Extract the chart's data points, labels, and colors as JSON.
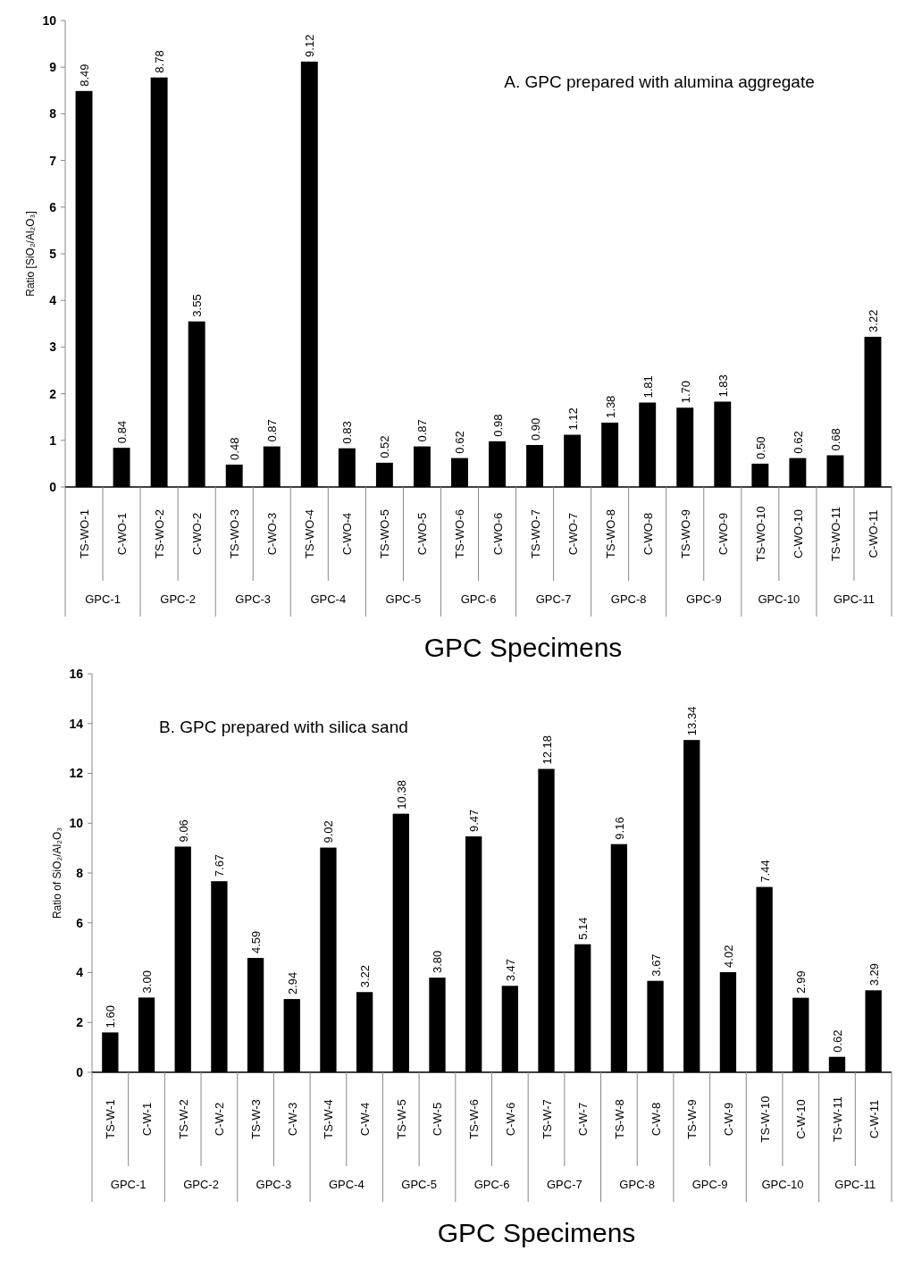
{
  "chart_data": [
    {
      "type": "bar",
      "title": "A. GPC prepared with alumina aggregate",
      "ylabel": "Ratio [SiO₂/Al₂O₃]",
      "xlabel": "GPC Specimens",
      "categories": [
        "TS-WO-1",
        "C-WO-1",
        "TS-WO-2",
        "C-WO-2",
        "TS-WO-3",
        "C-WO-3",
        "TS-WO-4",
        "C-WO-4",
        "TS-WO-5",
        "C-WO-5",
        "TS-WO-6",
        "C-WO-6",
        "TS-WO-7",
        "C-WO-7",
        "TS-WO-8",
        "C-WO-8",
        "TS-WO-9",
        "C-WO-9",
        "TS-WO-10",
        "C-WO-10",
        "TS-WO-11",
        "C-WO-11"
      ],
      "values": [
        8.49,
        0.84,
        8.78,
        3.55,
        0.48,
        0.87,
        9.12,
        0.83,
        0.52,
        0.87,
        0.62,
        0.98,
        0.9,
        1.12,
        1.38,
        1.81,
        1.7,
        1.83,
        0.5,
        0.62,
        0.68,
        3.22
      ],
      "value_labels": [
        "8.49",
        "0.84",
        "8.78",
        "3.55",
        "0.48",
        "0.87",
        "9.12",
        "0.83",
        "0.52",
        "0.87",
        "0.62",
        "0.98",
        "0.90",
        "1.12",
        "1.38",
        "1.81",
        "1.70",
        "1.83",
        "0.50",
        "0.62",
        "0.68",
        "3.22"
      ],
      "annotations": [
        "GPC-1",
        "GPC-2",
        "GPC-3",
        "GPC-4",
        "GPC-5",
        "GPC-6",
        "GPC-7",
        "GPC-8",
        "GPC-9",
        "GPC-10",
        "GPC-11"
      ],
      "color": "#000000",
      "ylim": [
        0,
        10
      ],
      "yticks": [
        0,
        1,
        2,
        3,
        4,
        5,
        6,
        7,
        8,
        9,
        10
      ]
    },
    {
      "type": "bar",
      "title": "B. GPC prepared with silica sand",
      "ylabel": "Ratio of SiO₂/Al₂O₃",
      "xlabel": "GPC Specimens",
      "categories": [
        "TS-W-1",
        "C-W-1",
        "TS-W-2",
        "C-W-2",
        "TS-W-3",
        "C-W-3",
        "TS-W-4",
        "C-W-4",
        "TS-W-5",
        "C-W-5",
        "TS-W-6",
        "C-W-6",
        "TS-W-7",
        "C-W-7",
        "TS-W-8",
        "C-W-8",
        "TS-W-9",
        "C-W-9",
        "TS-W-10",
        "C-W-10",
        "TS-W-11",
        "C-W-11"
      ],
      "values": [
        1.6,
        3.0,
        9.06,
        7.67,
        4.59,
        2.94,
        9.02,
        3.22,
        10.38,
        3.8,
        9.47,
        3.47,
        12.18,
        5.14,
        9.16,
        3.67,
        13.34,
        4.02,
        7.44,
        2.99,
        0.62,
        3.29
      ],
      "value_labels": [
        "1.60",
        "3.00",
        "9.06",
        "7.67",
        "4.59",
        "2.94",
        "9.02",
        "3.22",
        "10.38",
        "3.80",
        "9.47",
        "3.47",
        "12.18",
        "5.14",
        "9.16",
        "3.67",
        "13.34",
        "4.02",
        "7.44",
        "2.99",
        "0.62",
        "3.29"
      ],
      "annotations": [
        "GPC-1",
        "GPC-2",
        "GPC-3",
        "GPC-4",
        "GPC-5",
        "GPC-6",
        "GPC-7",
        "GPC-8",
        "GPC-9",
        "GPC-10",
        "GPC-11"
      ],
      "color": "#000000",
      "ylim": [
        0,
        16
      ],
      "yticks": [
        0,
        2,
        4,
        6,
        8,
        10,
        12,
        14,
        16
      ]
    }
  ]
}
